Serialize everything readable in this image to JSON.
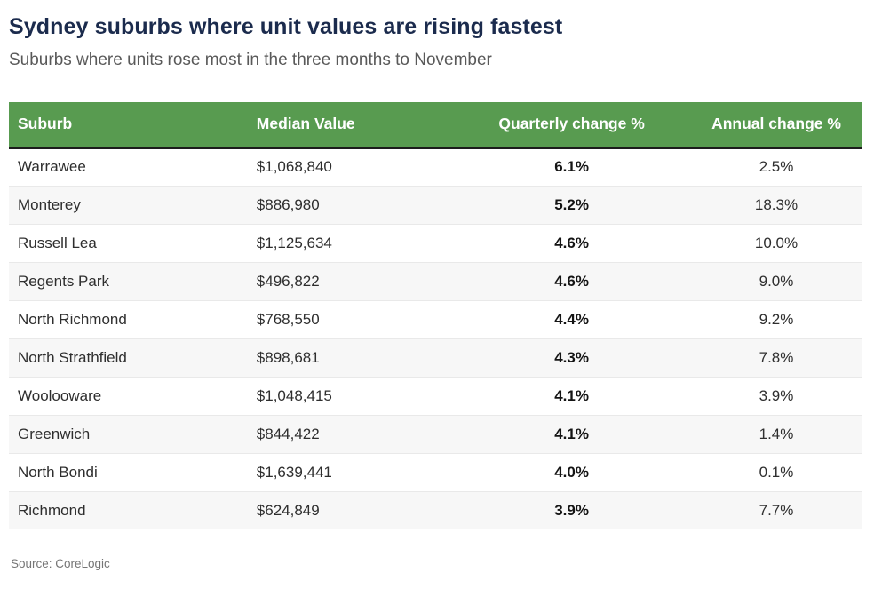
{
  "chart_data": {
    "type": "table",
    "title": "Sydney suburbs where unit values are rising fastest",
    "subtitle": "Suburbs where units rose most in the three months to November",
    "columns": [
      "Suburb",
      "Median Value",
      "Quarterly change %",
      "Annual change %"
    ],
    "column_alignments": [
      "left",
      "left",
      "center",
      "center"
    ],
    "emphasized_column_index": 2,
    "rows": [
      [
        "Warrawee",
        "$1,068,840",
        "6.1%",
        "2.5%"
      ],
      [
        "Monterey",
        "$886,980",
        "5.2%",
        "18.3%"
      ],
      [
        "Russell Lea",
        "$1,125,634",
        "4.6%",
        "10.0%"
      ],
      [
        "Regents Park",
        "$496,822",
        "4.6%",
        "9.0%"
      ],
      [
        "North Richmond",
        "$768,550",
        "4.4%",
        "9.2%"
      ],
      [
        "North Strathfield",
        "$898,681",
        "4.3%",
        "7.8%"
      ],
      [
        "Woolooware",
        "$1,048,415",
        "4.1%",
        "3.9%"
      ],
      [
        "Greenwich",
        "$844,422",
        "4.1%",
        "1.4%"
      ],
      [
        "North Bondi",
        "$1,639,441",
        "4.0%",
        "0.1%"
      ],
      [
        "Richmond",
        "$624,849",
        "3.9%",
        "7.7%"
      ]
    ],
    "source": "Source: CoreLogic"
  },
  "colors": {
    "header_bg": "#589b50",
    "header_text": "#ffffff",
    "header_border": "#1c1c1c",
    "title_text": "#1b2b4d",
    "subtitle_text": "#595959",
    "body_text": "#2e2e2e",
    "row_alt_bg": "#f7f7f7",
    "source_text": "#757575"
  }
}
